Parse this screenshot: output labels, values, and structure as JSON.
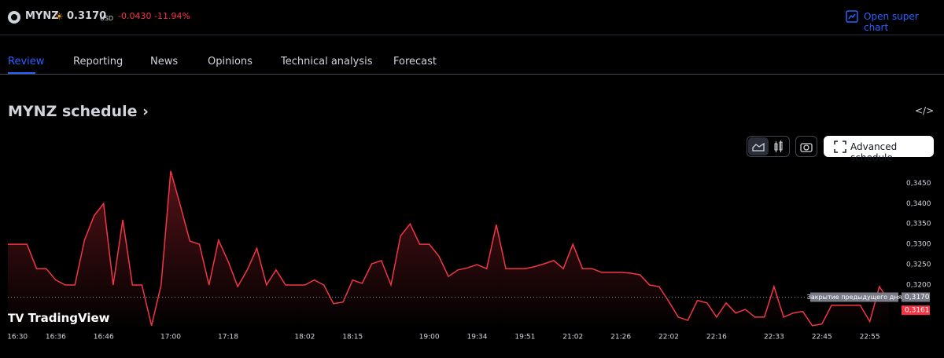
{
  "header": {
    "symbol": "MYNZ",
    "price": "0.3170",
    "currency": "USD",
    "change": "-0.0430",
    "change_pct": "-11.94%",
    "super_chart": "Open super chart"
  },
  "tabs": [
    "Review",
    "Reporting",
    "News",
    "Opinions",
    "Technical analysis",
    "Forecast"
  ],
  "section_title": "MYNZ schedule",
  "advanced_button": "Advanced schedule",
  "brand": "TradingView",
  "chart_data": {
    "type": "line",
    "color": "#f23645",
    "categories": [
      null,
      "16:30",
      null,
      null,
      null,
      "16:36",
      null,
      null,
      null,
      null,
      "16:46",
      null,
      null,
      null,
      null,
      null,
      null,
      "17:00",
      null,
      null,
      null,
      null,
      null,
      "17:18",
      null,
      null,
      null,
      null,
      null,
      null,
      null,
      "18:02",
      null,
      null,
      null,
      null,
      "18:15",
      null,
      null,
      null,
      null,
      null,
      null,
      null,
      "19:00",
      null,
      null,
      null,
      null,
      "19:34",
      null,
      null,
      null,
      null,
      "19:51",
      null,
      null,
      null,
      null,
      "21:02",
      null,
      null,
      null,
      null,
      "21:26",
      null,
      null,
      null,
      null,
      "22:02",
      null,
      null,
      null,
      null,
      "22:16",
      null,
      null,
      null,
      null,
      null,
      "22:33",
      null,
      null,
      null,
      null,
      "22:45",
      null,
      null,
      null,
      null,
      "22:55",
      null,
      null
    ],
    "values": [
      0.33,
      0.33,
      0.33,
      0.324,
      0.324,
      0.3212,
      0.32,
      0.32,
      0.331,
      0.337,
      0.34,
      0.32,
      0.336,
      0.32,
      0.32,
      0.31,
      0.32,
      0.348,
      0.3396,
      0.3308,
      0.33,
      0.32,
      0.331,
      0.3258,
      0.3196,
      0.3237,
      0.329,
      0.32,
      0.3237,
      0.32,
      0.32,
      0.32,
      0.3212,
      0.32,
      0.3154,
      0.3158,
      0.3212,
      0.3204,
      0.3252,
      0.326,
      0.32,
      0.332,
      0.335,
      0.33,
      0.33,
      0.3271,
      0.3221,
      0.3237,
      0.3242,
      0.325,
      0.324,
      0.3348,
      0.324,
      0.324,
      0.324,
      0.3245,
      0.3252,
      0.326,
      0.324,
      0.33,
      0.324,
      0.324,
      0.3231,
      0.3231,
      0.3231,
      0.3229,
      0.3225,
      0.32,
      0.3196,
      0.316,
      0.3121,
      0.3113,
      0.3162,
      0.3156,
      0.3121,
      0.3156,
      0.3131,
      0.314,
      0.3121,
      0.3121,
      0.3196,
      0.3121,
      0.3131,
      0.3135,
      0.31,
      0.3104,
      0.315,
      0.315,
      0.315,
      0.315,
      0.311,
      0.3196,
      0.3161
    ],
    "last_label": "0,3161",
    "reference_line": {
      "label": "Закрытие предыдущего дня",
      "value": 0.317,
      "value_label": "0,3170"
    },
    "ylim": [
      0.309,
      0.3495
    ],
    "yticks": [
      {
        "value": 0.32,
        "label": "0,3200"
      },
      {
        "value": 0.325,
        "label": "0,3250"
      },
      {
        "value": 0.33,
        "label": "0,3300"
      },
      {
        "value": 0.335,
        "label": "0,3350"
      },
      {
        "value": 0.34,
        "label": "0,3400"
      },
      {
        "value": 0.345,
        "label": "0,3450"
      }
    ],
    "grid": false
  }
}
